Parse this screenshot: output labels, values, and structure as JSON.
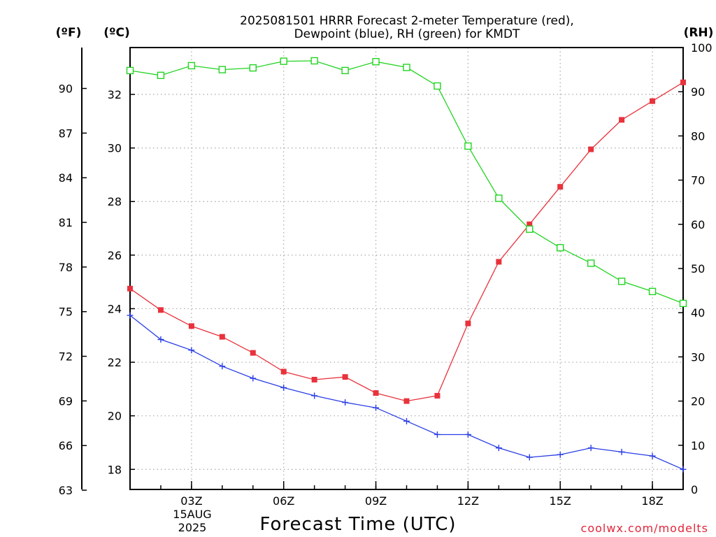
{
  "chart_data": {
    "type": "line",
    "title_lines": [
      "2025081501 HRRR Forecast 2-meter Temperature (red),",
      "Dewpoint (blue), RH (green) for KMDT"
    ],
    "xlabel": "Forecast Time (UTC)",
    "credit": "coolwx.com/modelts",
    "units": {
      "fahrenheit": "(ºF)",
      "celsius": "(ºC)",
      "rh": "(RH)"
    },
    "x_hours": [
      1,
      2,
      3,
      4,
      5,
      6,
      7,
      8,
      9,
      10,
      11,
      12,
      13,
      14,
      15,
      16,
      17,
      18,
      19
    ],
    "xlim": [
      1,
      19
    ],
    "x_ticks": [
      {
        "hour": 3,
        "label": "03Z"
      },
      {
        "hour": 6,
        "label": "06Z"
      },
      {
        "hour": 9,
        "label": "09Z"
      },
      {
        "hour": 12,
        "label": "12Z"
      },
      {
        "hour": 15,
        "label": "15Z"
      },
      {
        "hour": 18,
        "label": "18Z"
      }
    ],
    "date_label": [
      "15AUG",
      "2025"
    ],
    "date_label_hour": 3,
    "celsius_axis": {
      "ylim": [
        17.25,
        33.75
      ],
      "ticks": [
        18,
        20,
        22,
        24,
        26,
        28,
        30,
        32
      ]
    },
    "fahrenheit_axis": {
      "ylim": [
        63.05,
        92.75
      ],
      "ticks": [
        63,
        66,
        69,
        72,
        75,
        78,
        81,
        84,
        87,
        90
      ]
    },
    "rh_axis": {
      "ylim": [
        0,
        100
      ],
      "ticks": [
        0,
        10,
        20,
        30,
        40,
        50,
        60,
        70,
        80,
        90,
        100
      ]
    },
    "grid": true,
    "series": [
      {
        "name": "Temperature",
        "color": "#e8323c",
        "axis": "celsius",
        "marker": "filled-square",
        "values": [
          24.75,
          23.95,
          23.35,
          22.95,
          22.35,
          21.65,
          21.35,
          21.45,
          20.85,
          20.55,
          20.75,
          23.45,
          25.75,
          27.15,
          28.55,
          29.95,
          31.05,
          31.75,
          32.45
        ]
      },
      {
        "name": "Dewpoint",
        "color": "#2a3ee6",
        "axis": "celsius",
        "marker": "plus",
        "values": [
          23.75,
          22.85,
          22.45,
          21.85,
          21.4,
          21.05,
          20.75,
          20.5,
          20.3,
          19.8,
          19.3,
          19.3,
          18.8,
          18.45,
          18.55,
          18.8,
          18.65,
          18.5,
          18.0
        ]
      },
      {
        "name": "RH",
        "color": "#22d422",
        "axis": "rh",
        "marker": "open-square",
        "values": [
          94.8,
          93.7,
          95.9,
          95.0,
          95.4,
          96.9,
          97.0,
          94.8,
          96.8,
          95.5,
          91.3,
          77.7,
          65.9,
          58.9,
          54.7,
          51.2,
          47.1,
          44.8,
          42.1
        ]
      }
    ]
  }
}
